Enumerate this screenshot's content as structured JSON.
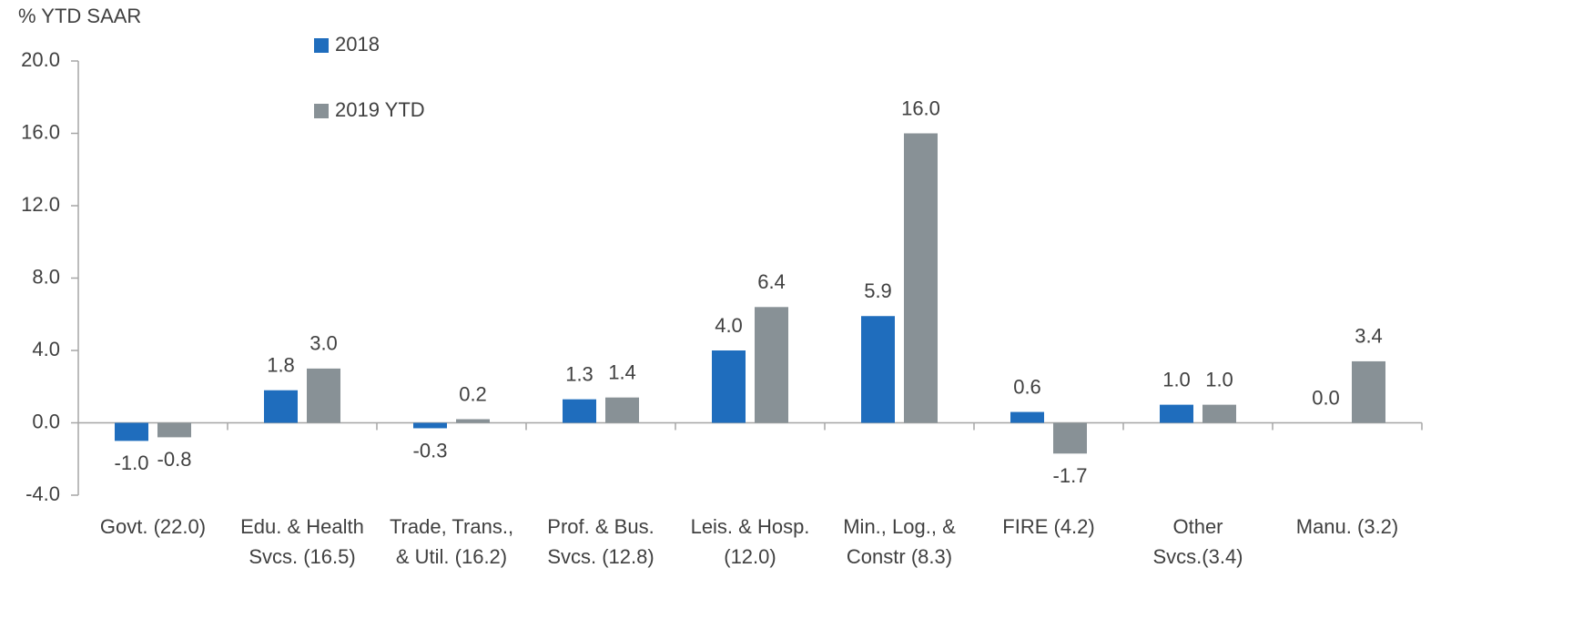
{
  "chart_data": {
    "type": "bar",
    "y_axis_label": "% YTD SAAR",
    "categories": [
      [
        "Govt. (22.0)"
      ],
      [
        "Edu. & Health",
        "Svcs. (16.5)"
      ],
      [
        "Trade, Trans.,",
        "& Util. (16.2)"
      ],
      [
        "Prof. & Bus.",
        "Svcs. (12.8)"
      ],
      [
        "Leis. & Hosp.",
        "(12.0)"
      ],
      [
        "Min., Log., &",
        "Constr (8.3)"
      ],
      [
        "FIRE (4.2)"
      ],
      [
        "Other",
        "Svcs.(3.4)"
      ],
      [
        "Manu. (3.2)"
      ]
    ],
    "series": [
      {
        "name": "2018",
        "color": "#1f6dbd",
        "values": [
          -1.0,
          1.8,
          -0.3,
          1.3,
          4.0,
          5.9,
          0.6,
          1.0,
          0.0
        ],
        "value_labels": [
          "-1.0",
          "1.8",
          "-0.3",
          "1.3",
          "4.0",
          "5.9",
          "0.6",
          "1.0",
          "0.0"
        ]
      },
      {
        "name": "2019  YTD",
        "color": "#889196",
        "values": [
          -0.8,
          3.0,
          0.2,
          1.4,
          6.4,
          16.0,
          -1.7,
          1.0,
          3.4
        ],
        "value_labels": [
          "-0.8",
          "3.0",
          "0.2",
          "1.4",
          "6.4",
          "16.0",
          "-1.7",
          "1.0",
          "3.4"
        ]
      }
    ],
    "ylim": [
      -4,
      20
    ],
    "yticks": [
      {
        "value": -4,
        "label": "-4.0"
      },
      {
        "value": 0,
        "label": "0.0"
      },
      {
        "value": 4,
        "label": "4.0"
      },
      {
        "value": 8,
        "label": "8.0"
      },
      {
        "value": 12,
        "label": "12.0"
      },
      {
        "value": 16,
        "label": "16.0"
      },
      {
        "value": 20,
        "label": "20.0"
      }
    ],
    "grid": false
  }
}
